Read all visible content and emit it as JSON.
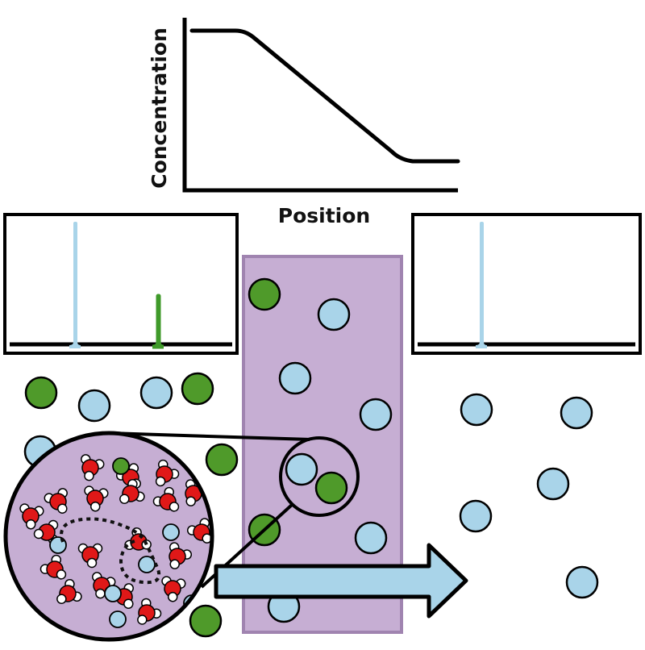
{
  "profile_chart": {
    "type": "line",
    "xlabel": "Position",
    "ylabel": "Concentration"
  },
  "colors": {
    "membrane": "#c6aed3",
    "membrane_border": "#a084b0",
    "light_blue_particle": "#a9d4e9",
    "green_particle": "#4f9a2a",
    "peak_blue": "#a9d4e9",
    "peak_green": "#3f9a2a",
    "oxygen": "#e01818",
    "arrow_fill": "#a9d4e9",
    "outline": "#000000"
  }
}
